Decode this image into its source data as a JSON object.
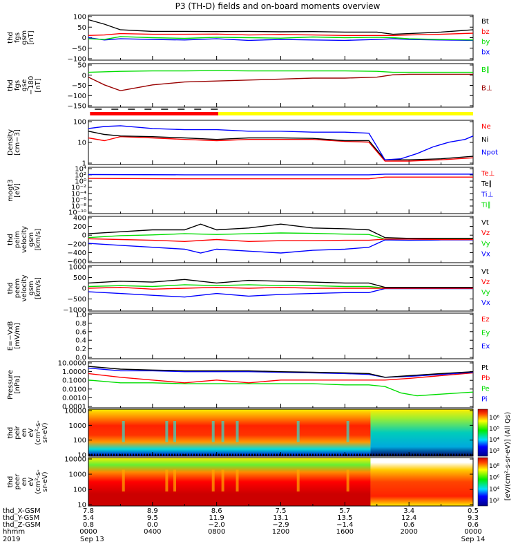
{
  "title": "P3 (TH-D) fields and on-board moments overview",
  "colors": {
    "black": "#000000",
    "red": "#ff0000",
    "green": "#00dd00",
    "blue": "#0000ff",
    "darkred": "#990000",
    "yellow": "#ffff00"
  },
  "chart_data": [
    {
      "type": "line",
      "panel": "fgs",
      "ylabel": [
        "thd",
        "fgs",
        "gsm",
        "[nT]"
      ],
      "yticks": [
        "100",
        "50",
        "0",
        "−50",
        "−100"
      ],
      "ylim": [
        -100,
        100
      ],
      "legend": [
        "Bt",
        "bz",
        "by",
        "bx"
      ],
      "legend_colors": [
        "#000000",
        "#ff0000",
        "#00dd00",
        "#0000ff"
      ],
      "series": [
        {
          "name": "Bt",
          "x": [
            0,
            1,
            2,
            4,
            6,
            8,
            10,
            12,
            14,
            16,
            18,
            19,
            20,
            22,
            24
          ],
          "y": [
            80,
            60,
            35,
            28,
            28,
            27,
            28,
            26,
            27,
            25,
            25,
            15,
            18,
            25,
            35
          ]
        },
        {
          "name": "bz",
          "x": [
            0,
            1,
            2,
            4,
            6,
            8,
            10,
            12,
            14,
            16,
            18,
            19,
            20,
            22,
            24
          ],
          "y": [
            10,
            12,
            18,
            15,
            15,
            16,
            12,
            14,
            12,
            10,
            10,
            10,
            12,
            15,
            20
          ]
        },
        {
          "name": "by",
          "x": [
            0,
            1,
            2,
            4,
            6,
            8,
            10,
            12,
            14,
            16,
            18,
            19,
            20,
            22,
            24
          ],
          "y": [
            -5,
            -8,
            5,
            0,
            -3,
            2,
            0,
            -2,
            3,
            0,
            2,
            0,
            -5,
            -8,
            -10
          ]
        },
        {
          "name": "bx",
          "x": [
            0,
            1,
            2,
            4,
            6,
            8,
            10,
            12,
            14,
            16,
            18,
            19,
            20,
            22,
            24
          ],
          "y": [
            0,
            -10,
            -5,
            -8,
            -10,
            -5,
            -12,
            -8,
            -10,
            -12,
            -8,
            -5,
            -8,
            -10,
            -12
          ]
        }
      ]
    },
    {
      "type": "line",
      "panel": "fgs-fac",
      "ylabel": [
        "thd",
        "fgs",
        "gse",
        "−180",
        "[nT]"
      ],
      "yticks": [
        "50",
        "0",
        "−50",
        "−100",
        "−150"
      ],
      "ylim": [
        -175,
        50
      ],
      "legend": [
        "B∥",
        "B⊥"
      ],
      "legend_colors": [
        "#00dd00",
        "#990000"
      ],
      "series": [
        {
          "name": "green",
          "x": [
            0,
            2,
            4,
            6,
            8,
            10,
            12,
            14,
            16,
            18,
            19,
            20,
            22,
            24
          ],
          "y": [
            5,
            10,
            12,
            12,
            14,
            12,
            12,
            12,
            12,
            10,
            5,
            5,
            5,
            5
          ]
        },
        {
          "name": "darkred",
          "x": [
            0,
            1,
            2,
            4,
            6,
            8,
            10,
            12,
            14,
            16,
            18,
            19,
            20,
            22,
            24
          ],
          "y": [
            -20,
            -60,
            -90,
            -60,
            -45,
            -40,
            -35,
            -30,
            -25,
            -25,
            -20,
            -8,
            -5,
            -5,
            -5
          ]
        }
      ]
    },
    {
      "type": "line",
      "panel": "density",
      "ylabel": [
        "Density",
        "[cm−3]"
      ],
      "yticks": [
        "100",
        "10",
        "1"
      ],
      "log_scale": true,
      "ylim": [
        0.3,
        200
      ],
      "legend": [
        "Ne",
        "Ni",
        "Npot"
      ],
      "legend_colors": [
        "#ff0000",
        "#000000",
        "#0000ff"
      ],
      "series": [
        {
          "name": "Npot",
          "x": [
            0,
            1,
            2,
            4,
            6,
            8,
            10,
            12,
            14,
            16,
            17.5,
            18.5,
            19.5,
            20.5,
            21.5,
            22.5,
            23.5,
            24
          ],
          "y": [
            60,
            80,
            90,
            60,
            50,
            50,
            40,
            40,
            35,
            35,
            30,
            0.6,
            0.7,
            1.5,
            4,
            8,
            12,
            20
          ]
        },
        {
          "name": "Ni",
          "x": [
            0,
            1,
            2,
            4,
            6,
            8,
            10,
            12,
            14,
            16,
            17.5,
            18.5,
            20,
            22,
            24
          ],
          "y": [
            40,
            25,
            20,
            18,
            15,
            12,
            15,
            15,
            14,
            10,
            10,
            0.6,
            0.6,
            0.7,
            1
          ]
        },
        {
          "name": "Ne",
          "x": [
            0,
            1,
            2,
            4,
            6,
            8,
            10,
            12,
            14,
            16,
            17.5,
            18.5,
            20,
            22,
            24
          ],
          "y": [
            15,
            10,
            18,
            15,
            12,
            10,
            12,
            12,
            12,
            9,
            8,
            0.5,
            0.5,
            0.6,
            0.8
          ]
        }
      ]
    },
    {
      "type": "line",
      "panel": "temperature",
      "ylabel": [
        "mogt3",
        "[eV]"
      ],
      "yticks": [
        "10⁴",
        "10²",
        "10⁰",
        "10⁻²",
        "10⁻⁴",
        "10⁻⁶",
        "10⁻⁸",
        "10⁻¹⁰"
      ],
      "log_scale": true,
      "legend": [
        "Te⊥",
        "Te∥",
        "Ti⊥",
        "Ti∥"
      ],
      "legend_colors": [
        "#ff0000",
        "#000000",
        "#0000ff",
        "#00dd00"
      ],
      "series": [
        {
          "name": "Ti",
          "x": [
            0,
            6,
            12,
            17.5,
            18.5,
            24
          ],
          "y": [
            3000,
            2500,
            2500,
            2500,
            4000,
            4000
          ]
        },
        {
          "name": "Te",
          "x": [
            0,
            6,
            12,
            17.5,
            18.5,
            24
          ],
          "y": [
            200,
            150,
            150,
            150,
            500,
            500
          ]
        }
      ]
    },
    {
      "type": "line",
      "panel": "peim-velocity",
      "ylabel": [
        "thd",
        "peim",
        "velocity",
        "gsm",
        "[km/s]"
      ],
      "yticks": [
        "400",
        "200",
        "0",
        "−200",
        "−400",
        "−600"
      ],
      "ylim": [
        -600,
        600
      ],
      "legend": [
        "Vt",
        "Vz",
        "Vy",
        "Vx"
      ],
      "legend_colors": [
        "#000000",
        "#ff0000",
        "#00dd00",
        "#0000ff"
      ],
      "series": [
        {
          "name": "Vt",
          "x": [
            0,
            2,
            4,
            6,
            7,
            8,
            10,
            12,
            14,
            16,
            17.5,
            18.5,
            20,
            22,
            24
          ],
          "y": [
            150,
            200,
            250,
            250,
            400,
            250,
            300,
            400,
            300,
            280,
            250,
            50,
            30,
            30,
            30
          ]
        },
        {
          "name": "Vz",
          "x": [
            0,
            2,
            4,
            6,
            8,
            10,
            12,
            14,
            16,
            17.5,
            18.5,
            20,
            22,
            24
          ],
          "y": [
            20,
            0,
            -20,
            -50,
            0,
            -50,
            -30,
            -30,
            -20,
            -20,
            10,
            10,
            0,
            0
          ]
        },
        {
          "name": "Vy",
          "x": [
            0,
            2,
            4,
            6,
            8,
            10,
            12,
            14,
            16,
            17.5,
            18.5,
            20,
            22,
            24
          ],
          "y": [
            50,
            100,
            120,
            150,
            130,
            150,
            170,
            160,
            140,
            130,
            10,
            20,
            10,
            10
          ]
        },
        {
          "name": "Vx",
          "x": [
            0,
            2,
            4,
            6,
            7,
            8,
            10,
            12,
            14,
            16,
            17.5,
            18.5,
            20,
            22,
            24
          ],
          "y": [
            -100,
            -150,
            -200,
            -250,
            -350,
            -250,
            -300,
            -350,
            -280,
            -250,
            -200,
            -10,
            -20,
            -10,
            -10
          ]
        }
      ]
    },
    {
      "type": "line",
      "panel": "peem-velocity",
      "ylabel": [
        "thd",
        "peem",
        "velocity",
        "gsm",
        "[km/s]"
      ],
      "yticks": [
        "1000",
        "500",
        "0",
        "−500",
        "−1000"
      ],
      "ylim": [
        -1300,
        1300
      ],
      "legend": [
        "Vt",
        "Vz",
        "Vy",
        "Vx"
      ],
      "legend_colors": [
        "#000000",
        "#ff0000",
        "#00dd00",
        "#0000ff"
      ],
      "series": [
        {
          "name": "Vt",
          "x": [
            0,
            2,
            4,
            6,
            8,
            10,
            12,
            14,
            16,
            17.5,
            18.5,
            20,
            22,
            24
          ],
          "y": [
            300,
            400,
            350,
            500,
            300,
            450,
            400,
            350,
            300,
            300,
            50,
            50,
            50,
            50
          ]
        },
        {
          "name": "Vz",
          "x": [
            0,
            2,
            4,
            6,
            8,
            10,
            12,
            14,
            16,
            17.5,
            18.5,
            20,
            22,
            24
          ],
          "y": [
            0,
            50,
            -50,
            0,
            50,
            0,
            50,
            0,
            0,
            0,
            0,
            0,
            0,
            0
          ]
        },
        {
          "name": "Vy",
          "x": [
            0,
            2,
            4,
            6,
            8,
            10,
            12,
            14,
            16,
            17.5,
            18.5,
            20,
            22,
            24
          ],
          "y": [
            100,
            150,
            100,
            200,
            150,
            200,
            150,
            150,
            100,
            100,
            10,
            10,
            10,
            10
          ]
        },
        {
          "name": "Vx",
          "x": [
            0,
            2,
            4,
            6,
            8,
            10,
            12,
            14,
            16,
            17.5,
            18.5,
            20,
            22,
            24
          ],
          "y": [
            -200,
            -300,
            -400,
            -500,
            -300,
            -450,
            -350,
            -300,
            -250,
            -250,
            -20,
            -20,
            -20,
            -20
          ]
        }
      ]
    },
    {
      "type": "line",
      "panel": "efield",
      "ylabel": [
        "E=−VxB",
        "[mV/m]"
      ],
      "yticks": [
        "1.0",
        "0.8",
        "0.6",
        "0.4",
        "0.2",
        "0.0"
      ],
      "ylim": [
        0,
        1
      ],
      "legend": [
        "Ez",
        "Ey",
        "Ex"
      ],
      "legend_colors": [
        "#ff0000",
        "#00dd00",
        "#0000ff"
      ],
      "series": []
    },
    {
      "type": "line",
      "panel": "pressure",
      "ylabel": [
        "Pressure",
        "[nPa]"
      ],
      "yticks": [
        "10.0000",
        "1.0000",
        "0.1000",
        "0.0100",
        "0.0010",
        "0.0001"
      ],
      "log_scale": true,
      "ylim": [
        0.0001,
        10
      ],
      "legend": [
        "Pt",
        "Pb",
        "Pe",
        "Pi"
      ],
      "legend_colors": [
        "#000000",
        "#ff0000",
        "#00dd00",
        "#0000ff"
      ],
      "series": [
        {
          "name": "Pt",
          "x": [
            0,
            2,
            4,
            6,
            8,
            10,
            12,
            14,
            16,
            17.5,
            18.5,
            20,
            22,
            24
          ],
          "y": [
            3,
            1.5,
            1.2,
            1,
            1,
            1,
            0.8,
            0.7,
            0.6,
            0.5,
            0.2,
            0.3,
            0.5,
            0.8
          ]
        },
        {
          "name": "Pi",
          "x": [
            0,
            2,
            4,
            6,
            8,
            10,
            12,
            14,
            16,
            17.5,
            18.5,
            20,
            22,
            24
          ],
          "y": [
            2,
            1,
            1,
            0.8,
            0.8,
            0.8,
            0.7,
            0.6,
            0.5,
            0.4,
            0.2,
            0.25,
            0.4,
            0.7
          ]
        },
        {
          "name": "Pb",
          "x": [
            0,
            2,
            4,
            6,
            8,
            10,
            12,
            14,
            16,
            17.5,
            18.5,
            20,
            22,
            24
          ],
          "y": [
            0.5,
            0.2,
            0.1,
            0.05,
            0.1,
            0.05,
            0.1,
            0.1,
            0.1,
            0.1,
            0.1,
            0.15,
            0.3,
            0.6
          ]
        },
        {
          "name": "Pe",
          "x": [
            0,
            2,
            4,
            6,
            8,
            10,
            12,
            14,
            16,
            17.5,
            18.5,
            19.5,
            20.5,
            22,
            24
          ],
          "y": [
            0.1,
            0.05,
            0.05,
            0.04,
            0.04,
            0.04,
            0.04,
            0.04,
            0.03,
            0.03,
            0.02,
            0.004,
            0.002,
            0.003,
            0.005
          ]
        }
      ]
    },
    {
      "type": "heatmap",
      "panel": "peir",
      "ylabel": [
        "thd",
        "peir",
        "en",
        "eV",
        "(cm²-s-",
        "sr-eV)"
      ],
      "yticks": [
        "10000",
        "1000",
        "100",
        "10"
      ],
      "colorbar_ticks": [
        "10⁶",
        "10⁵",
        "10⁴",
        "10³"
      ]
    },
    {
      "type": "heatmap",
      "panel": "peer",
      "ylabel": [
        "thd",
        "peer",
        "en",
        "eV",
        "(cm²-s-",
        "sr-eV)"
      ],
      "yticks": [
        "10000",
        "1000",
        "100",
        "10"
      ],
      "colorbar_ticks": [
        "10⁸",
        "10⁶",
        "10⁴",
        "10²"
      ]
    }
  ],
  "colorbar_label": "[eV/(cm²-s-sr-eV)] (All Qs)",
  "footer": {
    "row_labels": [
      "thd_X-GSM",
      "thd_Y-GSM",
      "thd_Z-GSM",
      "hhmm",
      "2019"
    ],
    "columns": [
      [
        "7.8",
        "5.4",
        "0.8",
        "0000",
        "Sep 13"
      ],
      [
        "8.9",
        "9.5",
        "0.0",
        "0400",
        ""
      ],
      [
        "8.6",
        "11.9",
        "−2.0",
        "0800",
        ""
      ],
      [
        "7.5",
        "13.1",
        "−2.9",
        "1200",
        ""
      ],
      [
        "5.7",
        "13.5",
        "−1.4",
        "1600",
        ""
      ],
      [
        "3.4",
        "12.4",
        "0.6",
        "2000",
        ""
      ],
      [
        "0.5",
        "9.3",
        "0.6",
        "0000",
        "Sep 14"
      ]
    ]
  }
}
